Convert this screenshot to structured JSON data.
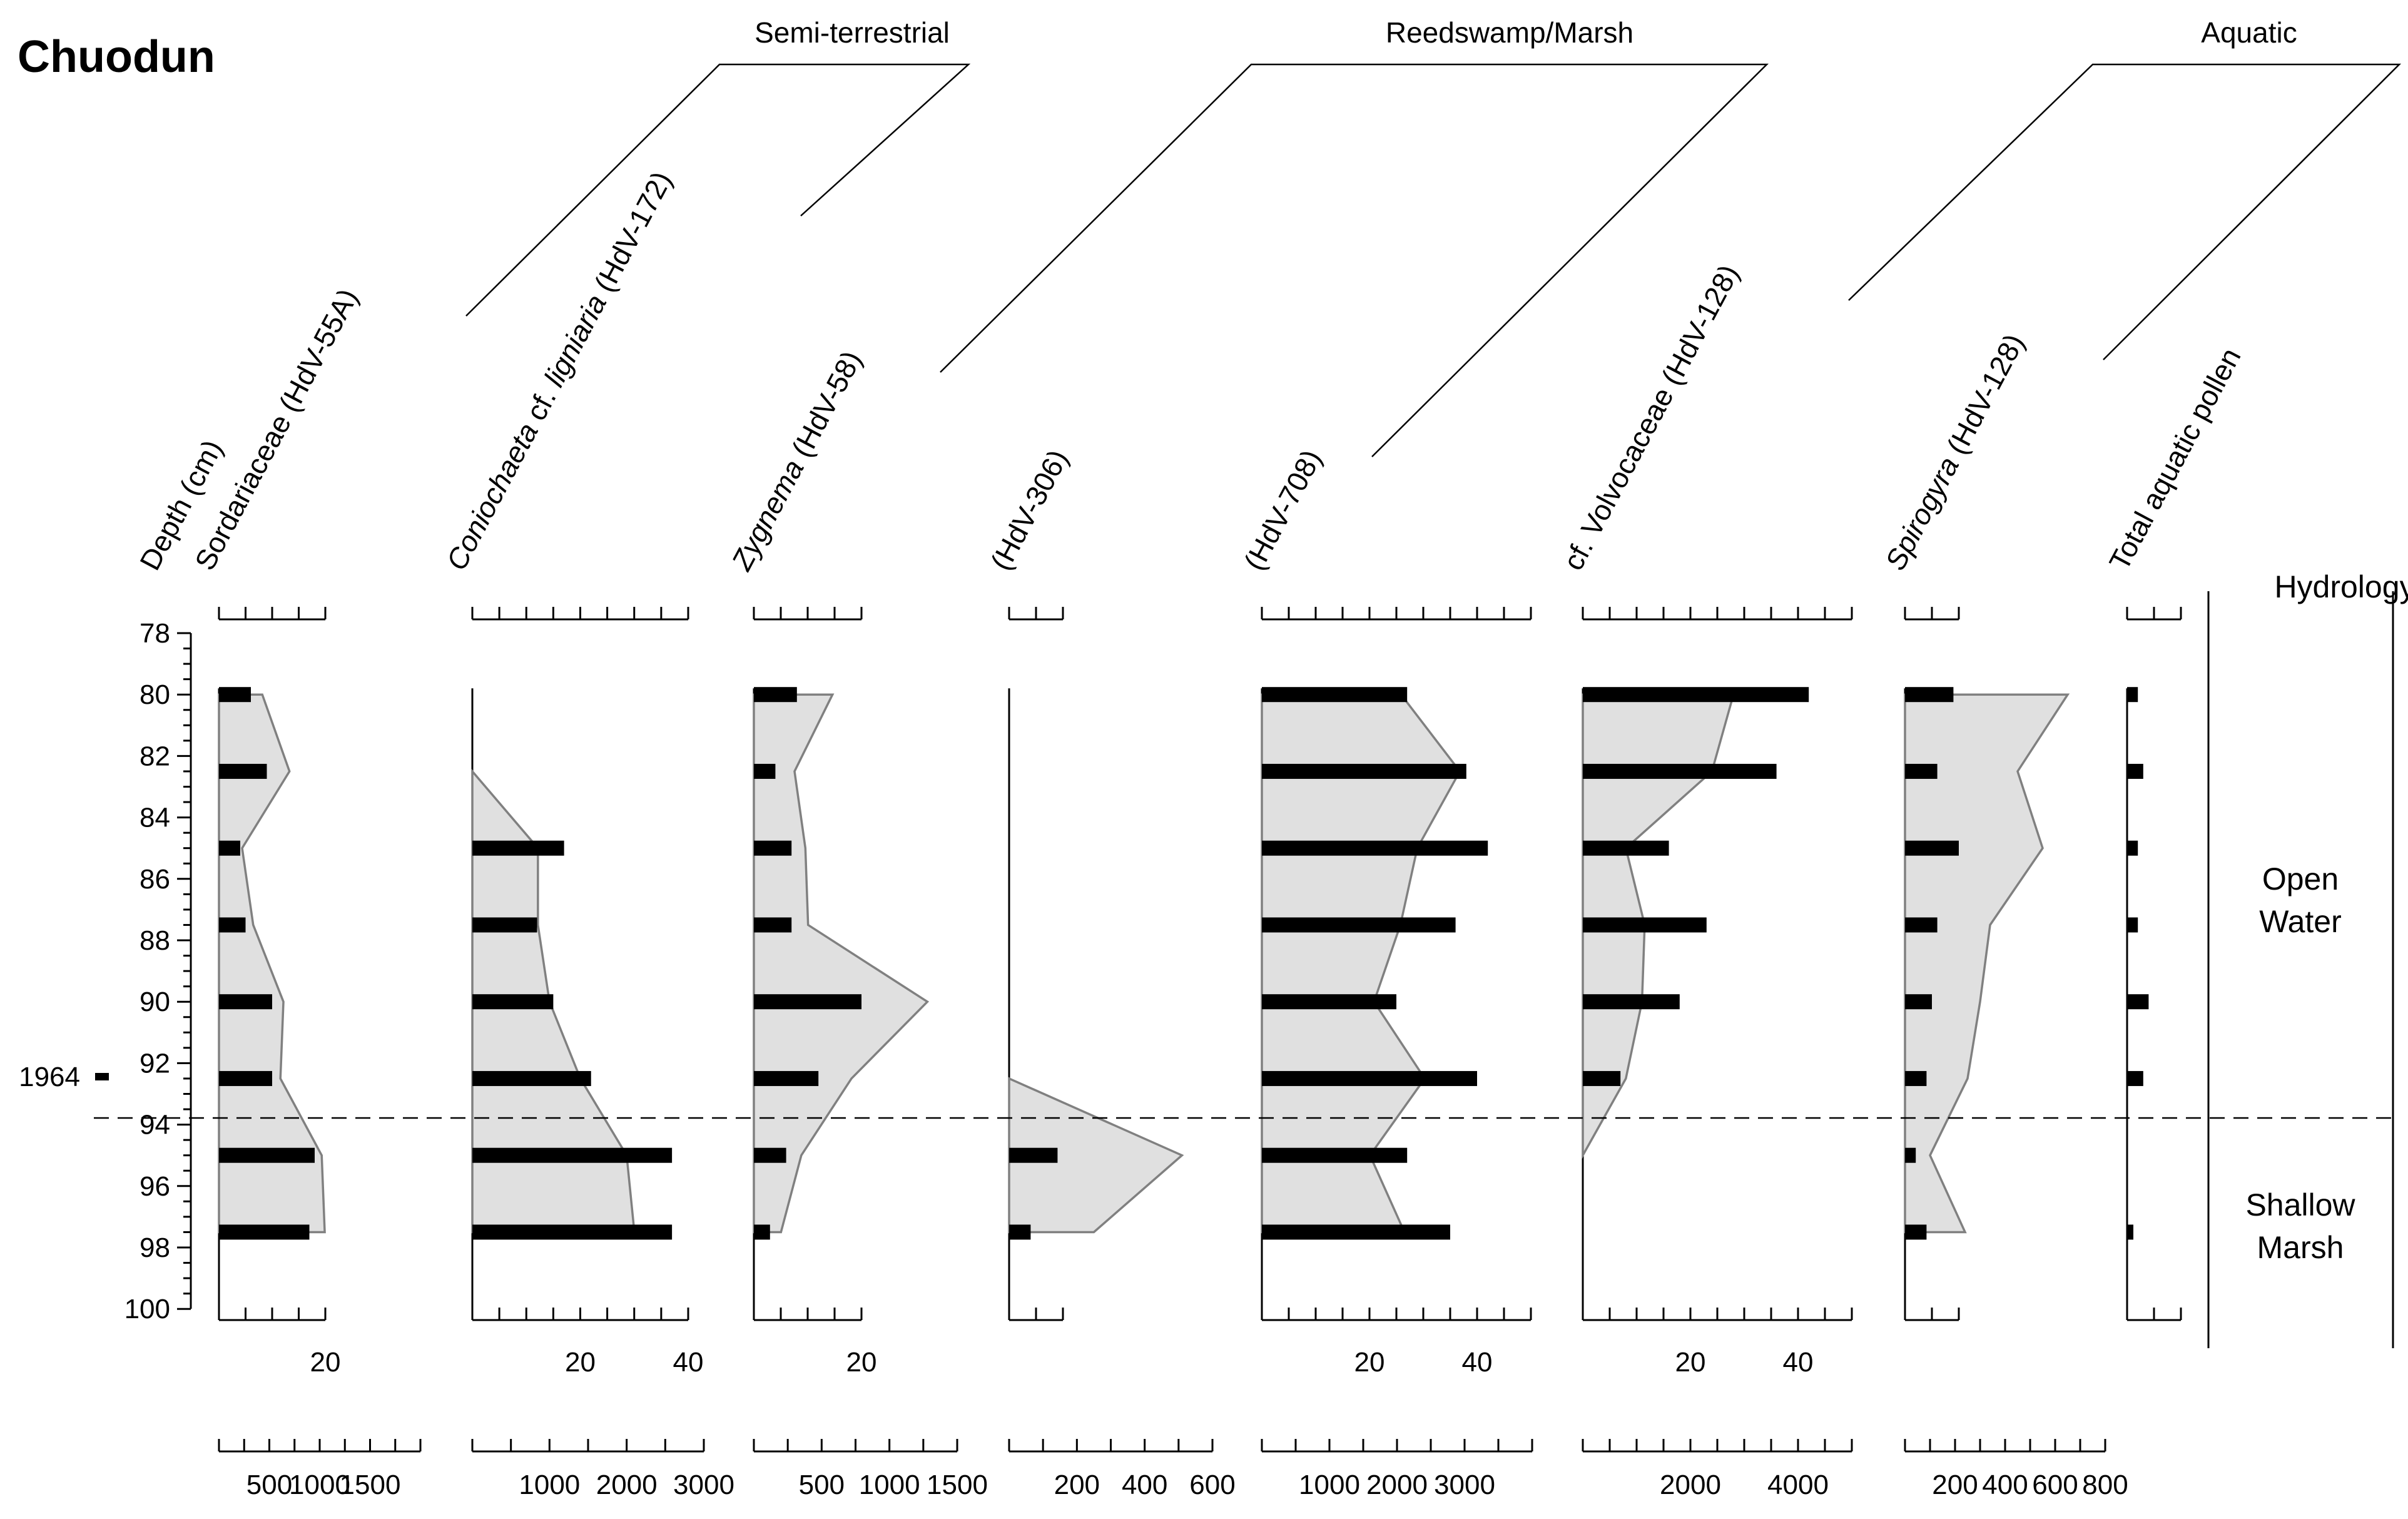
{
  "chart_data": {
    "type": "pollen_diagram",
    "title": "Chuodun",
    "depth_axis": {
      "label": "Depth (cm)",
      "min": 78,
      "max": 100,
      "major_step": 2,
      "tick_labels": [
        "78",
        "80",
        "82",
        "84",
        "86",
        "88",
        "90",
        "92",
        "94",
        "96",
        "98",
        "100"
      ]
    },
    "dated_depth": {
      "label": "1964",
      "depth": 92.5
    },
    "sample_depths": [
      80,
      82.5,
      85,
      87.5,
      90,
      92.5,
      95,
      97.5
    ],
    "groups": [
      {
        "label": "Semi-terrestrial"
      },
      {
        "label": "Reedswamp/Marsh"
      },
      {
        "label": "Aquatic"
      }
    ],
    "taxa": [
      {
        "id": "sordariaceae",
        "label": "Sordariaceae (HdV-55A)",
        "italic_part": "",
        "top_tick_max": 20,
        "top_tick_step": 5,
        "top_tick_labels": [
          "20"
        ],
        "bottom_tick_max": 2000,
        "bottom_tick_step": 250,
        "bottom_tick_labels": [
          "500",
          "1000",
          "1500"
        ],
        "bars_percent": [
          6,
          9,
          4,
          5,
          10,
          10,
          18,
          17
        ],
        "silhouette_bottom_units": [
          430,
          700,
          230,
          340,
          640,
          610,
          1020,
          1050
        ]
      },
      {
        "id": "coniochaeta",
        "label": " cf. ",
        "italic_part": "Coniochaeta",
        "italic_part_2": "ligniaria",
        "label_tail": " (HdV-172)",
        "top_tick_max": 40,
        "top_tick_step": 5,
        "top_tick_labels": [
          "20",
          "40"
        ],
        "bottom_tick_max": 3000,
        "bottom_tick_step": 500,
        "bottom_tick_labels": [
          "1000",
          "2000",
          "3000"
        ],
        "bars_percent": [
          null,
          null,
          17,
          12,
          15,
          22,
          37,
          37
        ],
        "silhouette_bottom_units": [
          null,
          0,
          850,
          850,
          1000,
          1400,
          2000,
          2100
        ],
        "silhouette_start_depth": 82.5
      },
      {
        "id": "zygnema",
        "label": " (HdV-58)",
        "italic_part": "Zygnema",
        "top_tick_max": 20,
        "top_tick_step": 5,
        "top_tick_labels": [
          "20"
        ],
        "bottom_tick_max": 1500,
        "bottom_tick_step": 250,
        "bottom_tick_labels": [
          "500",
          "1000",
          "1500"
        ],
        "bars_percent": [
          8,
          4,
          7,
          7,
          20,
          12,
          6,
          3
        ],
        "silhouette_bottom_units": [
          580,
          300,
          380,
          400,
          1280,
          720,
          350,
          200
        ]
      },
      {
        "id": "hdv306",
        "label": "(HdV-306)",
        "italic_part": "",
        "top_tick_max": 10,
        "top_tick_step": 5,
        "top_tick_labels": [],
        "bottom_tick_max": 600,
        "bottom_tick_step": 100,
        "bottom_tick_labels": [
          "200",
          "400",
          "600"
        ],
        "bars_percent": [
          null,
          null,
          null,
          null,
          null,
          null,
          9,
          4
        ],
        "silhouette_bottom_units": [
          null,
          null,
          null,
          null,
          null,
          0,
          510,
          250
        ],
        "silhouette_start_depth": 92.5
      },
      {
        "id": "hdv708",
        "label": "(HdV-708)",
        "italic_part": "",
        "top_tick_max": 50,
        "top_tick_step": 5,
        "top_tick_labels": [
          "20",
          "40"
        ],
        "bottom_tick_max": 4000,
        "bottom_tick_step": 500,
        "bottom_tick_labels": [
          "1000",
          "2000",
          "3000"
        ],
        "bars_percent": [
          27,
          38,
          42,
          36,
          25,
          40,
          27,
          35
        ],
        "silhouette_bottom_units": [
          2060,
          2930,
          2300,
          2050,
          1660,
          2410,
          1600,
          2110
        ]
      },
      {
        "id": "volvocaceae",
        "label": "cf. Volvocaceae (HdV-128)",
        "italic_part": "",
        "top_tick_max": 50,
        "top_tick_step": 5,
        "top_tick_labels": [
          "20",
          "40"
        ],
        "bottom_tick_max": 5000,
        "bottom_tick_step": 500,
        "bottom_tick_labels": [
          "2000",
          "4000"
        ],
        "bars_percent": [
          42,
          36,
          16,
          23,
          18,
          7,
          null,
          null
        ],
        "silhouette_bottom_units": [
          2800,
          2400,
          800,
          1150,
          1100,
          800,
          0,
          null
        ],
        "silhouette_end_depth": 95
      },
      {
        "id": "spirogyra",
        "label": " (HdV-128)",
        "italic_part": "Spirogyra",
        "top_tick_max": 10,
        "top_tick_step": 5,
        "top_tick_labels": [],
        "bottom_tick_max": 800,
        "bottom_tick_step": 100,
        "bottom_tick_labels": [
          "200",
          "400",
          "600",
          "800"
        ],
        "bars_percent": [
          9,
          6,
          10,
          6,
          5,
          4,
          2,
          4
        ],
        "silhouette_bottom_units": [
          650,
          450,
          550,
          340,
          300,
          250,
          100,
          240
        ]
      },
      {
        "id": "aquatic_pollen",
        "label": "Total aquatic pollen",
        "italic_part": "",
        "top_tick_max": 10,
        "top_tick_step": 5,
        "top_tick_labels": [],
        "bars_percent": [
          2,
          3,
          2,
          2,
          4,
          3,
          null,
          1
        ]
      }
    ],
    "hydrology": {
      "label": "Hydrology",
      "boundary_depth": 93.75,
      "zones": [
        {
          "line1": "Open",
          "line2": "Water",
          "center_depth": 87.5
        },
        {
          "line1": "Shallow",
          "line2": "Marsh",
          "center_depth": 97.2
        }
      ]
    }
  }
}
